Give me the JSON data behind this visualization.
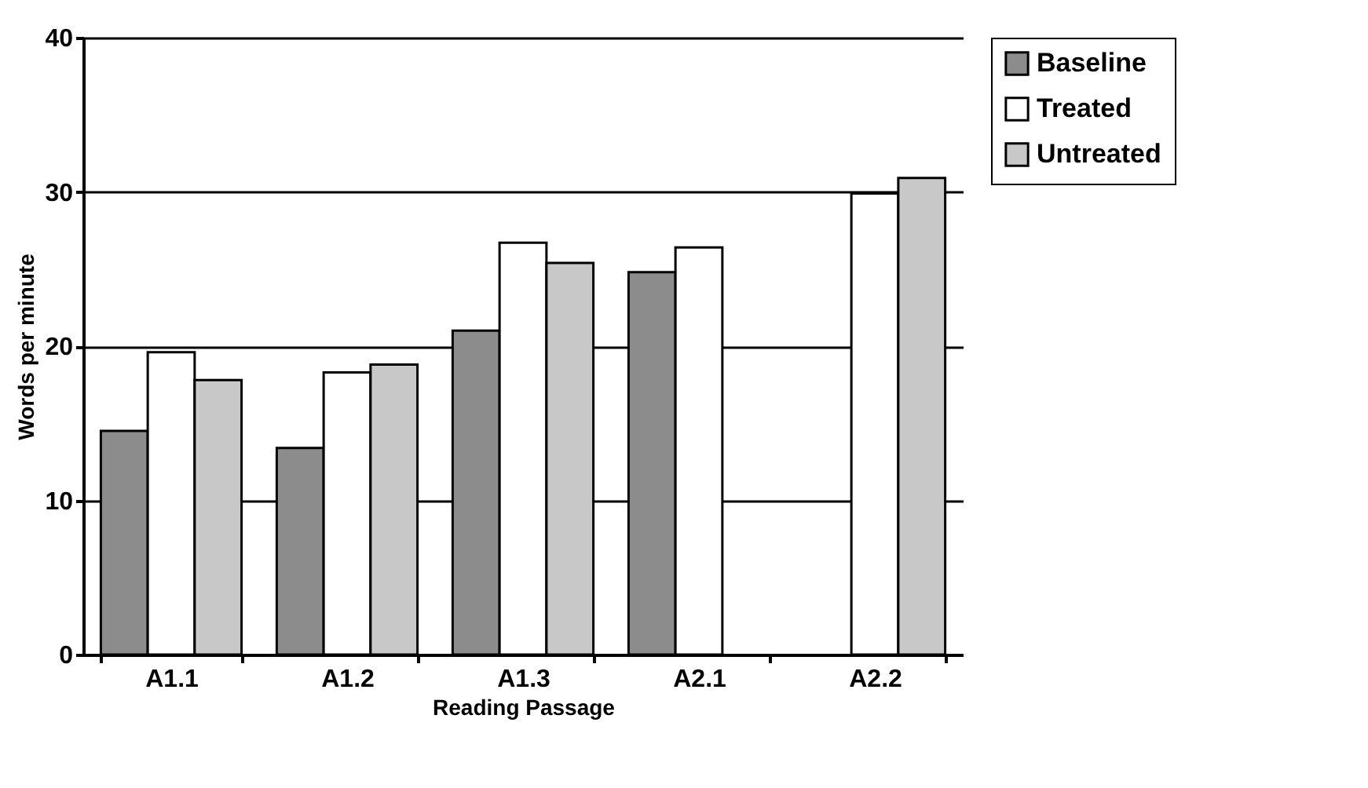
{
  "chart_data": {
    "type": "bar",
    "xlabel": "Reading Passage",
    "ylabel": "Words per minute",
    "categories": [
      "A1.1",
      "A1.2",
      "A1.3",
      "A2.1",
      "A2.2"
    ],
    "series": [
      {
        "name": "Baseline",
        "color": "#8c8c8c",
        "values": [
          14.5,
          13.4,
          21.0,
          24.8,
          null
        ]
      },
      {
        "name": "Treated",
        "color": "#ffffff",
        "values": [
          19.6,
          18.3,
          26.7,
          26.4,
          29.9
        ]
      },
      {
        "name": "Untreated",
        "color": "#c8c8c8",
        "values": [
          17.8,
          18.8,
          25.4,
          null,
          30.9
        ]
      }
    ],
    "ylim": [
      0,
      40
    ],
    "yticks": [
      0,
      10,
      20,
      30,
      40
    ],
    "grid": "y",
    "legend": "right"
  }
}
